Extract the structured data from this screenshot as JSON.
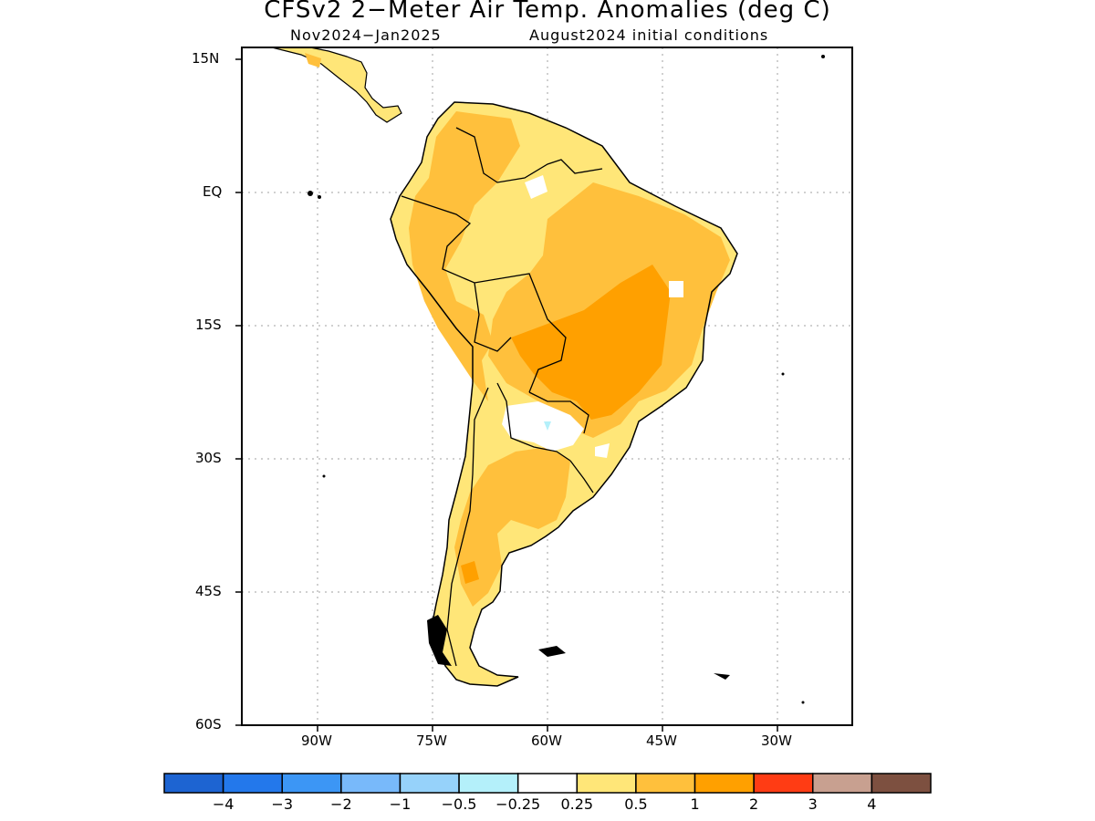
{
  "title": "CFSv2 2−Meter Air Temp. Anomalies (deg C)",
  "subtitle_left": "Nov2024−Jan2025",
  "subtitle_right": "August2024 initial conditions",
  "lat_labels": [
    "15N",
    "EQ",
    "15S",
    "30S",
    "45S",
    "60S"
  ],
  "lon_labels": [
    "90W",
    "75W",
    "60W",
    "45W",
    "30W"
  ],
  "colorbar": {
    "colors": [
      "#1d64d2",
      "#2378eb",
      "#3c96f5",
      "#78b9fa",
      "#96d2fa",
      "#b4f0fa",
      "#ffffff",
      "#ffe678",
      "#ffc03c",
      "#ffa000",
      "#ff3c14",
      "#c8a090",
      "#7d5040"
    ],
    "labels": [
      "−4",
      "−3",
      "−2",
      "−1",
      "−0.5",
      "−0.25",
      "0.25",
      "0.5",
      "1",
      "2",
      "3",
      "4"
    ]
  },
  "chart_data": {
    "type": "heatmap",
    "variable": "2-meter air temperature anomaly (deg C)",
    "lat_range": [
      -60,
      15
    ],
    "lon_range": [
      -98,
      -18
    ],
    "contour_levels": [
      -4,
      -3,
      -2,
      -1,
      -0.5,
      -0.25,
      0.25,
      0.5,
      1,
      2,
      3,
      4
    ],
    "regions": [
      {
        "name": "continent-base",
        "anomaly_class": "0.25 to 0.5"
      },
      {
        "name": "northwest-andes-amazon",
        "anomaly_class": "0.5 to 1"
      },
      {
        "name": "central-brazil",
        "anomaly_class": "0.5 to 1"
      },
      {
        "name": "central-argentina",
        "anomaly_class": "0.5 to 1"
      },
      {
        "name": "central-brazil-core",
        "anomaly_class": "1 to 2"
      },
      {
        "name": "paraguay-chaco",
        "anomaly_class": "-0.25 to 0.25"
      },
      {
        "name": "east-brazil-spot",
        "anomaly_class": "-0.25 to 0.25"
      }
    ]
  }
}
